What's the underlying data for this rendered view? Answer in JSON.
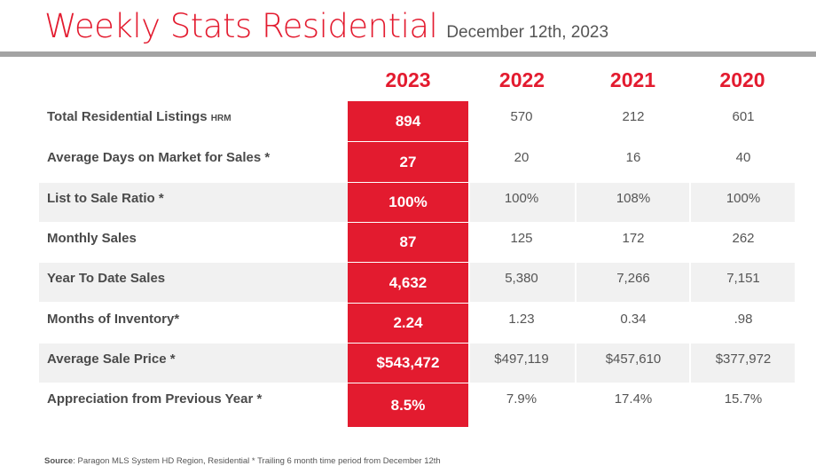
{
  "header": {
    "title": "Weekly Stats Residential",
    "date": "December 12th, 2023"
  },
  "years": [
    "2023",
    "2022",
    "2021",
    "2020"
  ],
  "rows": [
    {
      "label": "Total Residential Listings",
      "suffix": "HRM",
      "values": [
        "894",
        "570",
        "212",
        "601"
      ]
    },
    {
      "label": "Average Days on Market for Sales *",
      "suffix": "",
      "values": [
        "27",
        "20",
        "16",
        "40"
      ]
    },
    {
      "label": "List to Sale Ratio *",
      "suffix": "",
      "values": [
        "100%",
        "100%",
        "108%",
        "100%"
      ]
    },
    {
      "label": "Monthly Sales",
      "suffix": "",
      "values": [
        "87",
        "125",
        "172",
        "262"
      ]
    },
    {
      "label": "Year To Date Sales",
      "suffix": "",
      "values": [
        "4,632",
        "5,380",
        "7,266",
        "7,151"
      ]
    },
    {
      "label": "Months of Inventory*",
      "suffix": "",
      "values": [
        "2.24",
        "1.23",
        "0.34",
        ".98"
      ]
    },
    {
      "label": "Average Sale Price *",
      "suffix": "",
      "values": [
        "$543,472",
        "$497,119",
        "$457,610",
        "$377,972"
      ]
    },
    {
      "label": "Appreciation from Previous Year *",
      "suffix": "",
      "values": [
        "8.5%",
        "7.9%",
        "17.4%",
        "15.7%"
      ]
    }
  ],
  "footer": {
    "source_label": "Source",
    "source_text": ": Paragon MLS System HD Region,  Residential * Trailing 6 month time period  from December 12th"
  },
  "colors": {
    "accent": "#e31b2f",
    "rule": "#a3a3a3",
    "shade": "#f1f1f1"
  }
}
